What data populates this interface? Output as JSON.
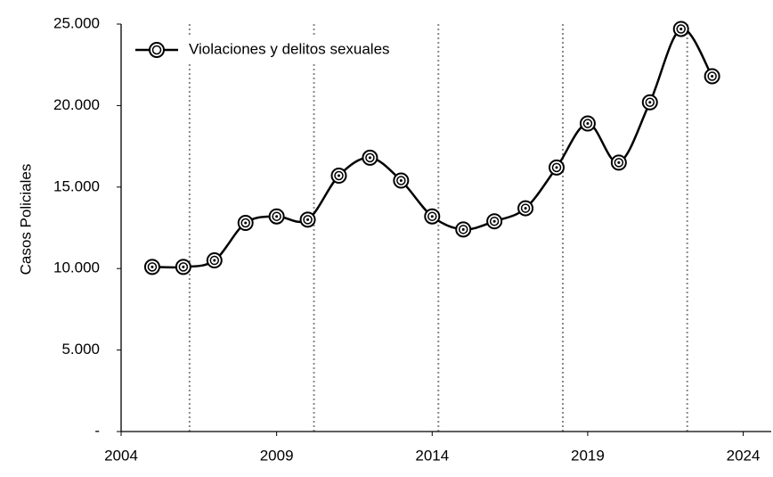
{
  "chart_data": {
    "type": "line",
    "y_label": "Casos Policiales",
    "x": [
      2005,
      2006,
      2007,
      2008,
      2009,
      2010,
      2011,
      2012,
      2013,
      2014,
      2015,
      2016,
      2017,
      2018,
      2019,
      2020,
      2021,
      2022,
      2023
    ],
    "series": [
      {
        "name": "Violaciones y delitos sexuales",
        "color": "#000000",
        "values": [
          10100,
          10100,
          10500,
          12800,
          13200,
          13000,
          15700,
          16800,
          15400,
          13200,
          12400,
          12900,
          13700,
          16200,
          18900,
          16500,
          20200,
          24700,
          21800
        ]
      }
    ],
    "xlim": [
      2004,
      2024.9
    ],
    "xticks": [
      2004,
      2009,
      2014,
      2019,
      2024
    ],
    "ylim": [
      0,
      25000
    ],
    "yticks": [
      {
        "value": 0,
        "label": "-"
      },
      {
        "value": 5000,
        "label": "5.000"
      },
      {
        "value": 10000,
        "label": "10.000"
      },
      {
        "value": 15000,
        "label": "15.000"
      },
      {
        "value": 20000,
        "label": "20.000"
      },
      {
        "value": 25000,
        "label": "25.000"
      }
    ],
    "vlines": [
      2006.2,
      2010.2,
      2014.2,
      2018.2,
      2022.2
    ],
    "legend": "top-left"
  }
}
